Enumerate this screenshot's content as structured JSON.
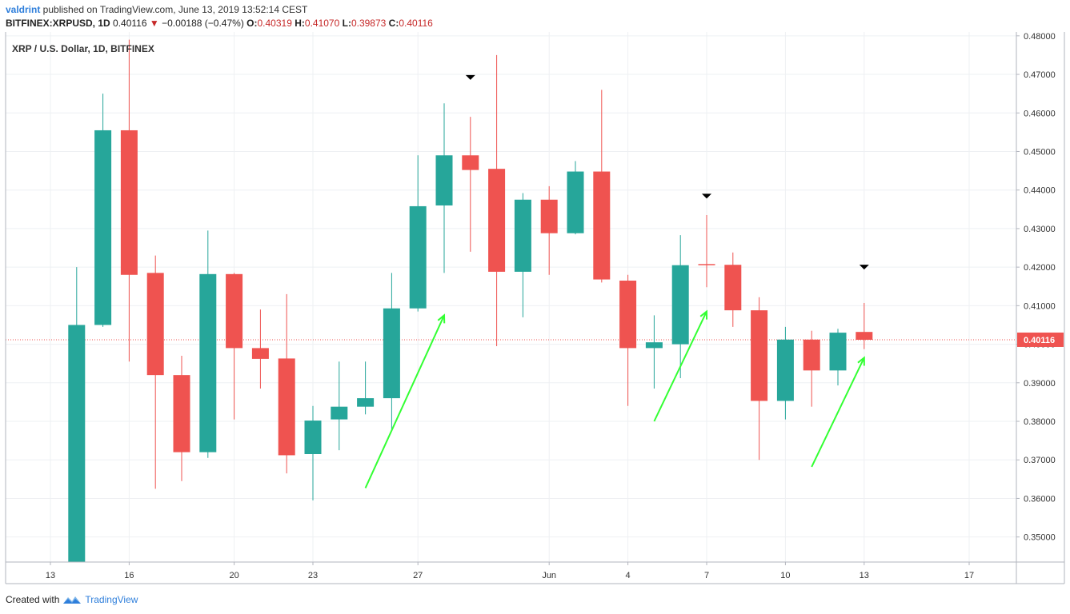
{
  "header": {
    "user": "valdrint",
    "published_text": " published on TradingView.com, June 13, 2019 13:52:14 CEST",
    "symbol": "BITFINEX:XRPUSD, 1D",
    "last": " 0.40116 ",
    "change_arrow": "▼",
    "change": " −0.00188 (−0.47%) ",
    "open_label": "O:",
    "open": "0.40319",
    "high_label": " H:",
    "high": "0.41070",
    "low_label": " L:",
    "low": "0.39873",
    "close_label": " C:",
    "close": "0.40116"
  },
  "footer": {
    "created_with": "Created with",
    "brand": "TradingView"
  },
  "chart_data": {
    "type": "candlestick",
    "title": "XRP / U.S. Dollar, 1D, BITFINEX",
    "ylim": [
      0.3435,
      0.481
    ],
    "y_ticks": [
      "0.35000",
      "0.36000",
      "0.37000",
      "0.38000",
      "0.39000",
      "0.40000",
      "0.41000",
      "0.42000",
      "0.43000",
      "0.44000",
      "0.45000",
      "0.46000",
      "0.47000",
      "0.48000"
    ],
    "x_ticks": [
      {
        "day": 13,
        "label": "13"
      },
      {
        "day": 16,
        "label": "16"
      },
      {
        "day": 20,
        "label": "20"
      },
      {
        "day": 23,
        "label": "23"
      },
      {
        "day": 27,
        "label": "27"
      },
      {
        "day": 32,
        "label": "Jun"
      },
      {
        "day": 35,
        "label": "4"
      },
      {
        "day": 38,
        "label": "7"
      },
      {
        "day": 41,
        "label": "10"
      },
      {
        "day": 44,
        "label": "13"
      },
      {
        "day": 48,
        "label": "17"
      }
    ],
    "current_price": 0.40116,
    "current_price_label": "0.40116",
    "up_color": "#26a69a",
    "down_color": "#ef5350",
    "candles": [
      {
        "date": "May 14",
        "day": 14,
        "o": 0.33,
        "h": 0.42,
        "l": 0.325,
        "c": 0.405
      },
      {
        "date": "May 15",
        "day": 15,
        "o": 0.405,
        "h": 0.465,
        "l": 0.4045,
        "c": 0.4555
      },
      {
        "date": "May 16",
        "day": 16,
        "o": 0.4555,
        "h": 0.479,
        "l": 0.3955,
        "c": 0.418
      },
      {
        "date": "May 17",
        "day": 17,
        "o": 0.4185,
        "h": 0.423,
        "l": 0.3625,
        "c": 0.392
      },
      {
        "date": "May 18",
        "day": 18,
        "o": 0.392,
        "h": 0.397,
        "l": 0.3645,
        "c": 0.372
      },
      {
        "date": "May 19",
        "day": 19,
        "o": 0.372,
        "h": 0.4295,
        "l": 0.3705,
        "c": 0.4182
      },
      {
        "date": "May 20",
        "day": 20,
        "o": 0.4182,
        "h": 0.4185,
        "l": 0.3805,
        "c": 0.399
      },
      {
        "date": "May 21",
        "day": 21,
        "o": 0.399,
        "h": 0.409,
        "l": 0.3885,
        "c": 0.3962
      },
      {
        "date": "May 22",
        "day": 22,
        "o": 0.3963,
        "h": 0.413,
        "l": 0.3665,
        "c": 0.3712
      },
      {
        "date": "May 23",
        "day": 23,
        "o": 0.3715,
        "h": 0.384,
        "l": 0.3595,
        "c": 0.3802
      },
      {
        "date": "May 24",
        "day": 24,
        "o": 0.3805,
        "h": 0.3955,
        "l": 0.3725,
        "c": 0.3838
      },
      {
        "date": "May 25",
        "day": 25,
        "o": 0.3838,
        "h": 0.3955,
        "l": 0.3818,
        "c": 0.386
      },
      {
        "date": "May 26",
        "day": 26,
        "o": 0.386,
        "h": 0.4185,
        "l": 0.3775,
        "c": 0.4093
      },
      {
        "date": "May 27",
        "day": 27,
        "o": 0.4093,
        "h": 0.449,
        "l": 0.4085,
        "c": 0.4358
      },
      {
        "date": "May 28",
        "day": 28,
        "o": 0.436,
        "h": 0.4625,
        "l": 0.4185,
        "c": 0.449
      },
      {
        "date": "May 29",
        "day": 29,
        "o": 0.449,
        "h": 0.459,
        "l": 0.424,
        "c": 0.4452
      },
      {
        "date": "May 30",
        "day": 30,
        "o": 0.4455,
        "h": 0.475,
        "l": 0.3995,
        "c": 0.4188
      },
      {
        "date": "May 31",
        "day": 31,
        "o": 0.4188,
        "h": 0.4392,
        "l": 0.407,
        "c": 0.4375
      },
      {
        "date": "Jun 1",
        "day": 32,
        "o": 0.4375,
        "h": 0.441,
        "l": 0.418,
        "c": 0.4288
      },
      {
        "date": "Jun 2",
        "day": 33,
        "o": 0.4288,
        "h": 0.4475,
        "l": 0.4285,
        "c": 0.4448
      },
      {
        "date": "Jun 3",
        "day": 34,
        "o": 0.4448,
        "h": 0.466,
        "l": 0.416,
        "c": 0.4168
      },
      {
        "date": "Jun 4",
        "day": 35,
        "o": 0.4165,
        "h": 0.418,
        "l": 0.384,
        "c": 0.399
      },
      {
        "date": "Jun 5",
        "day": 36,
        "o": 0.399,
        "h": 0.4075,
        "l": 0.3885,
        "c": 0.4005
      },
      {
        "date": "Jun 6",
        "day": 37,
        "o": 0.4,
        "h": 0.4283,
        "l": 0.3912,
        "c": 0.4205
      },
      {
        "date": "Jun 7",
        "day": 38,
        "o": 0.4208,
        "h": 0.4335,
        "l": 0.4148,
        "c": 0.4205
      },
      {
        "date": "Jun 8",
        "day": 39,
        "o": 0.4206,
        "h": 0.4238,
        "l": 0.4045,
        "c": 0.4088
      },
      {
        "date": "Jun 9",
        "day": 40,
        "o": 0.4088,
        "h": 0.4122,
        "l": 0.37,
        "c": 0.3853
      },
      {
        "date": "Jun 10",
        "day": 41,
        "o": 0.3853,
        "h": 0.4045,
        "l": 0.3805,
        "c": 0.4012
      },
      {
        "date": "Jun 11",
        "day": 42,
        "o": 0.4012,
        "h": 0.4035,
        "l": 0.3838,
        "c": 0.3932
      },
      {
        "date": "Jun 12",
        "day": 43,
        "o": 0.3932,
        "h": 0.404,
        "l": 0.3893,
        "c": 0.403
      },
      {
        "date": "Jun 13",
        "day": 44,
        "o": 0.40319,
        "h": 0.4107,
        "l": 0.39873,
        "c": 0.40116
      }
    ],
    "markers": [
      {
        "day": 29,
        "price": 0.4692
      },
      {
        "day": 38,
        "price": 0.4384
      },
      {
        "day": 44,
        "price": 0.42
      }
    ],
    "arrows": [
      {
        "from_day": 25.0,
        "from_price": 0.3627,
        "to_day": 28.0,
        "to_price": 0.4075
      },
      {
        "from_day": 36.0,
        "from_price": 0.38,
        "to_day": 38.0,
        "to_price": 0.4085
      },
      {
        "from_day": 42.0,
        "from_price": 0.3682,
        "to_day": 44.0,
        "to_price": 0.3965
      }
    ],
    "arrow_color": "#33ff33",
    "marker_color": "#000000"
  }
}
